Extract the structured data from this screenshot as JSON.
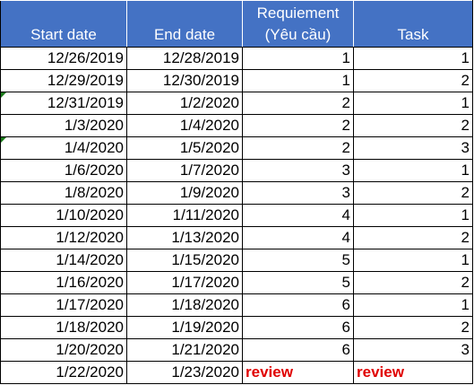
{
  "columns": {
    "start_date": "Start date",
    "end_date": "End date",
    "requirement_line1": "Requiement",
    "requirement_line2": "(Yêu cầu)",
    "task": "Task"
  },
  "rows": [
    {
      "start": "12/26/2019",
      "end": "12/28/2019",
      "req": "1",
      "task": "1"
    },
    {
      "start": "12/29/2019",
      "end": "12/30/2019",
      "req": "1",
      "task": "2"
    },
    {
      "start": "12/31/2019",
      "end": "1/2/2020",
      "req": "2",
      "task": "1"
    },
    {
      "start": "1/3/2020",
      "end": "1/4/2020",
      "req": "2",
      "task": "2"
    },
    {
      "start": "1/4/2020",
      "end": "1/5/2020",
      "req": "2",
      "task": "3"
    },
    {
      "start": "1/6/2020",
      "end": "1/7/2020",
      "req": "3",
      "task": "1"
    },
    {
      "start": "1/8/2020",
      "end": "1/9/2020",
      "req": "3",
      "task": "2"
    },
    {
      "start": "1/10/2020",
      "end": "1/11/2020",
      "req": "4",
      "task": "1"
    },
    {
      "start": "1/12/2020",
      "end": "1/13/2020",
      "req": "4",
      "task": "2"
    },
    {
      "start": "1/14/2020",
      "end": "1/15/2020",
      "req": "5",
      "task": "1"
    },
    {
      "start": "1/16/2020",
      "end": "1/17/2020",
      "req": "5",
      "task": "2"
    },
    {
      "start": "1/17/2020",
      "end": "1/18/2020",
      "req": "6",
      "task": "1"
    },
    {
      "start": "1/18/2020",
      "end": "1/19/2020",
      "req": "6",
      "task": "2"
    },
    {
      "start": "1/20/2020",
      "end": "1/21/2020",
      "req": "6",
      "task": "3"
    },
    {
      "start": "1/22/2020",
      "end": "1/23/2020",
      "req": "review",
      "task": "review"
    }
  ],
  "colors": {
    "header_fill": "#4472c4",
    "header_text": "#ffffff",
    "review_text": "#e00000",
    "error_flag": "#1a7a1a"
  },
  "icons": {
    "cell_flag": "green-triangle-error-indicator"
  }
}
